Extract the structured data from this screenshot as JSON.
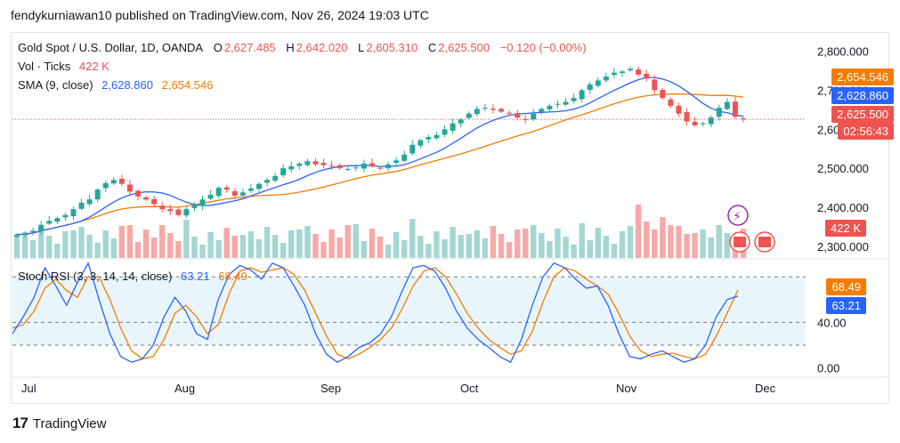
{
  "header": {
    "publisher_line": "fendykurniawan10 published on TradingView.com, Nov 26, 2024 19:03 UTC"
  },
  "legend": {
    "symbol": "Gold Spot / U.S. Dollar, 1D, OANDA",
    "o_label": "O",
    "o_value": "2,627.485",
    "h_label": "H",
    "h_value": "2,642.020",
    "l_label": "L",
    "l_value": "2,605.310",
    "c_label": "C",
    "c_value": "2,625.500",
    "change": "−0.120 (−0.00%)",
    "vol_label": "Vol · Ticks",
    "vol_value": "422 K",
    "sma_label": "SMA (9, close)",
    "sma_value_1": "2,628.860",
    "sma_value_2": "2,654.546",
    "stoch_label": "Stoch RSI (3, 3, 14, 14, close)",
    "stoch_k": "63.21",
    "stoch_d": "68.49"
  },
  "price_axis": {
    "ticks": [
      "2,800.000",
      "2,700.000",
      "2,600.000",
      "2,500.000",
      "2,400.000",
      "2,300.000"
    ]
  },
  "price_tags": {
    "sma_slow": "2,654.546",
    "sma_fast": "2,628.860",
    "last_price": "2,625.500",
    "countdown": "02:56:43",
    "volume": "422 K"
  },
  "stoch_axis": {
    "ticks": [
      "80.00",
      "40.00",
      "0.00"
    ]
  },
  "stoch_tags": {
    "d": "68.49",
    "k": "63.21"
  },
  "time_axis": {
    "labels": [
      "Jul",
      "Aug",
      "Sep",
      "Oct",
      "Nov",
      "Dec"
    ]
  },
  "footer": {
    "brand": "TradingView"
  },
  "colors": {
    "up": "#26a69a",
    "down": "#ef5350",
    "sma_fast": "#2962ff",
    "sma_slow": "#f57c00",
    "stoch_k": "#2962ff",
    "stoch_d": "#f57c00",
    "vol_up": "#a4d6d2",
    "vol_down": "#f7a9a7"
  },
  "chart_data": [
    {
      "type": "candlestick",
      "title": "Gold Spot / U.S. Dollar, 1D, OANDA",
      "xlabel": "",
      "ylabel": "",
      "ylim": [
        2270,
        2840
      ],
      "x_labels": [
        "Jul",
        "Aug",
        "Sep",
        "Oct",
        "Nov",
        "Dec"
      ],
      "close_series": [
        2330,
        2332,
        2340,
        2355,
        2365,
        2372,
        2380,
        2395,
        2412,
        2420,
        2445,
        2462,
        2470,
        2460,
        2440,
        2428,
        2420,
        2408,
        2395,
        2390,
        2380,
        2395,
        2405,
        2420,
        2432,
        2450,
        2445,
        2430,
        2438,
        2448,
        2460,
        2470,
        2480,
        2500,
        2505,
        2512,
        2518,
        2510,
        2508,
        2505,
        2500,
        2498,
        2502,
        2512,
        2505,
        2500,
        2510,
        2520,
        2535,
        2560,
        2572,
        2580,
        2585,
        2600,
        2615,
        2625,
        2640,
        2652,
        2655,
        2650,
        2645,
        2640,
        2630,
        2625,
        2640,
        2652,
        2660,
        2665,
        2670,
        2680,
        2700,
        2715,
        2725,
        2735,
        2745,
        2748,
        2755,
        2740,
        2730,
        2700,
        2680,
        2660,
        2640,
        2620,
        2610,
        2615,
        2630,
        2655,
        2670,
        2632,
        2625.5
      ],
      "series": [
        {
          "name": "SMA (9, close)",
          "values_first_last": [
            2330,
            2628.86
          ]
        },
        {
          "name": "SMA (9, close)",
          "values_first_last": [
            2325,
            2654.546
          ]
        }
      ],
      "last": {
        "open": 2627.485,
        "high": 2642.02,
        "low": 2605.31,
        "close": 2625.5
      }
    },
    {
      "type": "line",
      "title": "Stoch RSI (3, 3, 14, 14, close)",
      "ylim": [
        -5,
        95
      ],
      "reference_levels": [
        80,
        40,
        0
      ],
      "series": [
        {
          "name": "K",
          "values": [
            30,
            45,
            62,
            88,
            72,
            55,
            75,
            92,
            60,
            30,
            10,
            5,
            8,
            20,
            45,
            62,
            50,
            30,
            25,
            60,
            82,
            90,
            86,
            78,
            92,
            88,
            72,
            55,
            30,
            12,
            5,
            10,
            18,
            22,
            30,
            45,
            68,
            88,
            90,
            85,
            70,
            50,
            35,
            25,
            18,
            10,
            5,
            25,
            55,
            80,
            92,
            88,
            78,
            70,
            72,
            55,
            30,
            10,
            8,
            12,
            15,
            10,
            5,
            8,
            20,
            45,
            60,
            63.21
          ]
        },
        {
          "name": "D",
          "values": [
            35,
            38,
            50,
            70,
            78,
            68,
            62,
            80,
            80,
            60,
            35,
            15,
            8,
            10,
            25,
            48,
            55,
            45,
            30,
            38,
            65,
            85,
            88,
            84,
            86,
            88,
            82,
            68,
            48,
            28,
            12,
            8,
            12,
            18,
            25,
            35,
            52,
            72,
            85,
            88,
            80,
            65,
            48,
            35,
            25,
            18,
            12,
            15,
            32,
            58,
            80,
            88,
            85,
            78,
            72,
            65,
            48,
            28,
            15,
            10,
            12,
            13,
            10,
            8,
            12,
            28,
            48,
            68.49
          ]
        }
      ]
    }
  ]
}
